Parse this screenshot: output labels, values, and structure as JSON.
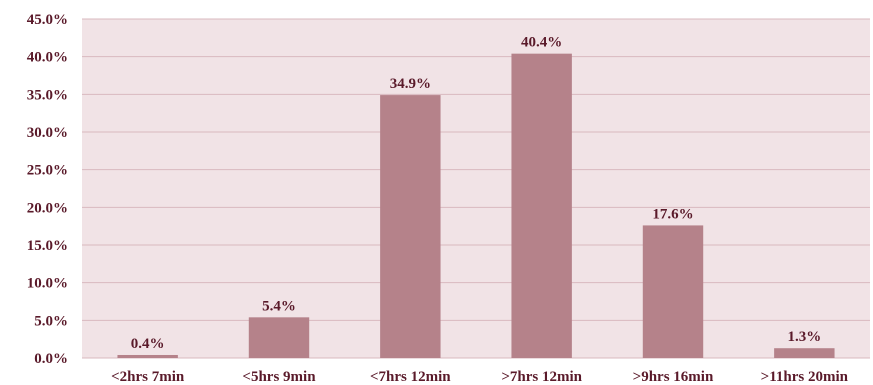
{
  "chart_data": {
    "type": "bar",
    "title": "",
    "xlabel": "",
    "ylabel": "",
    "categories": [
      "<2hrs 7min",
      "<5hrs 9min",
      "<7hrs 12min",
      ">7hrs 12min",
      ">9hrs 16min",
      ">11hrs 20min"
    ],
    "values": [
      0.4,
      5.4,
      34.9,
      40.4,
      17.6,
      1.3
    ],
    "data_labels": [
      "0.4%",
      "5.4%",
      "34.9%",
      "40.4%",
      "17.6%",
      "1.3%"
    ],
    "ylim": [
      0,
      45
    ],
    "yticks": [
      0,
      5,
      10,
      15,
      20,
      25,
      30,
      35,
      40,
      45
    ],
    "ytick_labels": [
      "0.0%",
      "5.0%",
      "10.0%",
      "15.0%",
      "20.0%",
      "25.0%",
      "30.0%",
      "35.0%",
      "40.0%",
      "45.0%"
    ],
    "grid": true,
    "legend": "none",
    "colors": {
      "bar": "#b5828a",
      "plot_background": "#f1e3e6",
      "gridline": "#d9b8bf",
      "text": "#5a1a2a"
    }
  }
}
